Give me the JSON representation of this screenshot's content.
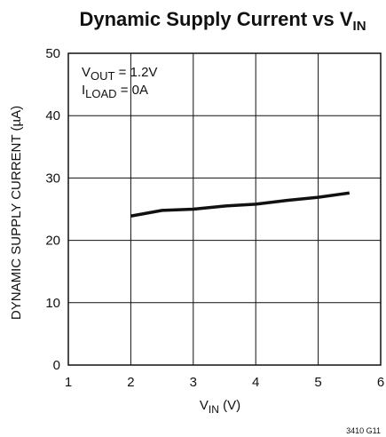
{
  "chart_data": {
    "type": "line",
    "title": {
      "main": "Dynamic Supply Current vs V",
      "sub": "IN"
    },
    "xlabel": {
      "main": "V",
      "sub": "IN",
      "suffix": " (V)"
    },
    "ylabel": "DYNAMIC SUPPLY CURRENT (µA)",
    "xlim": [
      1,
      6
    ],
    "ylim": [
      0,
      50
    ],
    "xticks": [
      1,
      2,
      3,
      4,
      5,
      6
    ],
    "yticks": [
      0,
      10,
      20,
      30,
      40,
      50
    ],
    "grid": true,
    "annotations": [
      {
        "main": "V",
        "sub": "OUT",
        "suffix": " = 1.2V"
      },
      {
        "main": "I",
        "sub": "LOAD",
        "suffix": " = 0A"
      }
    ],
    "series": [
      {
        "color": "#111111",
        "x": [
          2.0,
          2.5,
          3.0,
          3.5,
          4.0,
          4.5,
          5.0,
          5.5
        ],
        "y": [
          23.9,
          24.8,
          25.0,
          25.5,
          25.8,
          26.4,
          26.9,
          27.6
        ]
      }
    ],
    "figure_id": "3410 G11"
  }
}
